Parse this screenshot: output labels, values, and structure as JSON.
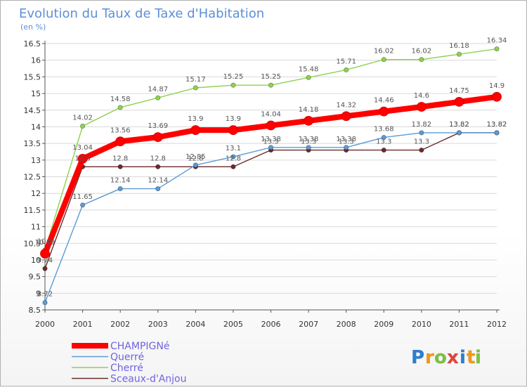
{
  "chart_data": {
    "type": "line",
    "title": "Evolution du Taux de Taxe d'Habitation",
    "subtitle": "(en %)",
    "xlabel": "",
    "ylabel": "",
    "x": [
      "2000",
      "2001",
      "2002",
      "2003",
      "2004",
      "2005",
      "2006",
      "2007",
      "2008",
      "2009",
      "2010",
      "2011",
      "2012"
    ],
    "ylim": [
      8.5,
      16.5
    ],
    "yticks": [
      "8.5",
      "9",
      "9.5",
      "10",
      "10.5",
      "11",
      "11.5",
      "12",
      "12.5",
      "13",
      "13.5",
      "14",
      "14.5",
      "15",
      "15.5",
      "16",
      "16.5"
    ],
    "grid": "horizontal",
    "legend": "bottom-left",
    "series": [
      {
        "name": "Sceaux-d'Anjou",
        "color": "#6b2a2a",
        "values": [
          9.74,
          12.8,
          12.8,
          12.8,
          12.8,
          12.8,
          13.3,
          13.3,
          13.3,
          13.3,
          13.3,
          13.82,
          13.82
        ],
        "labels": [
          "9.74",
          "12.8",
          "12.8",
          "12.8",
          "12.8",
          "12.8",
          "13.3",
          "13.3",
          "13.3",
          "13.3",
          "13.3",
          "13.82",
          "13.82"
        ]
      },
      {
        "name": "Querré",
        "color": "#5b9bd5",
        "values": [
          8.72,
          11.65,
          12.14,
          12.14,
          12.85,
          13.1,
          13.38,
          13.38,
          13.38,
          13.68,
          13.82,
          13.82,
          13.82
        ],
        "labels": [
          "8.72",
          "11.65",
          "12.14",
          "12.14",
          "12.85",
          "13.1",
          "13.38",
          "13.38",
          "13.38",
          "13.68",
          "13.82",
          "13.82",
          "13.82"
        ]
      },
      {
        "name": "Cherré",
        "color": "#8fd14f",
        "values": [
          10.3,
          14.02,
          14.58,
          14.87,
          15.17,
          15.25,
          15.25,
          15.48,
          15.71,
          16.02,
          16.02,
          16.18,
          16.34
        ],
        "labels": [
          "10.3",
          "14.02",
          "14.58",
          "14.87",
          "15.17",
          "15.25",
          "15.25",
          "15.48",
          "15.71",
          "16.02",
          "16.02",
          "16.18",
          "16.34"
        ]
      },
      {
        "name": "CHAMPIGNé",
        "color": "#ff0000",
        "values": [
          10.19,
          13.04,
          13.56,
          13.69,
          13.9,
          13.9,
          14.04,
          14.18,
          14.32,
          14.46,
          14.6,
          14.75,
          14.9
        ],
        "labels": [
          "10.19",
          "13.04",
          "13.56",
          "13.69",
          "13.9",
          "13.9",
          "14.04",
          "14.18",
          "14.32",
          "14.46",
          "14.6",
          "14.75",
          "14.9"
        ]
      }
    ],
    "legend_items": [
      {
        "name": "CHAMPIGNé",
        "color": "#ff0000"
      },
      {
        "name": "Querré",
        "color": "#5b9bd5"
      },
      {
        "name": "Cherré",
        "color": "#8fd14f"
      },
      {
        "name": "Sceaux-d'Anjou",
        "color": "#6b2a2a"
      }
    ],
    "legend_text_color": "#6f63e0",
    "grid_color": "#d9d9d9",
    "axis_color": "#555555"
  },
  "logo": {
    "text": "Proxiti",
    "letters": [
      "P",
      "r",
      "o",
      "x",
      "i",
      "t",
      "i"
    ],
    "colors": [
      "#2b7fd4",
      "#f29a16",
      "#7cc242",
      "#e0463f",
      "#2b7fd4",
      "#f29a16",
      "#7cc242"
    ]
  }
}
